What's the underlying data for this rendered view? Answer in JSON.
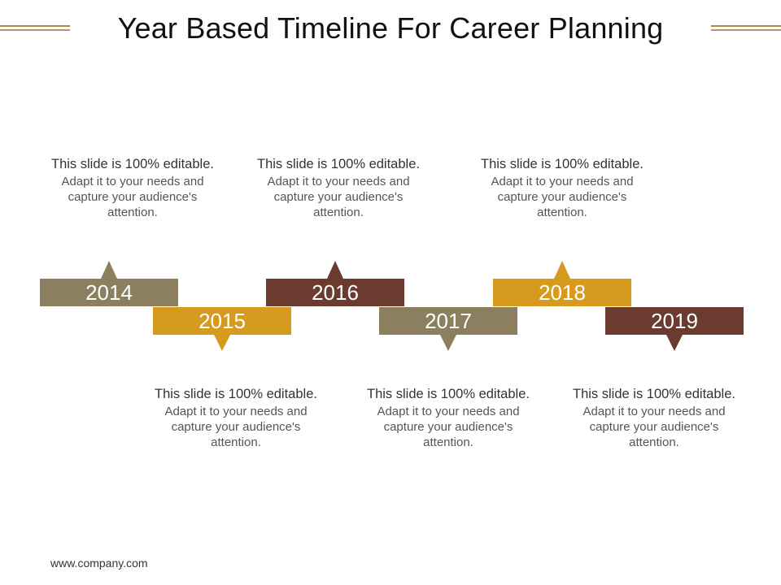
{
  "title": "Year Based Timeline For Career Planning",
  "footer": "www.company.com",
  "colors": {
    "taupe": "#8b7f5f",
    "gold": "#d69a1e",
    "brown": "#6b3b30"
  },
  "milestones": [
    {
      "year": "2014",
      "color": "#8b7f5f",
      "heading": "This slide is 100% editable.",
      "body": "Adapt it to your needs and capture your audience's attention."
    },
    {
      "year": "2015",
      "color": "#d69a1e",
      "heading": "This slide is 100% editable.",
      "body": "Adapt it to your needs and capture your audience's attention."
    },
    {
      "year": "2016",
      "color": "#6b3b30",
      "heading": "This slide is 100% editable.",
      "body": "Adapt it to your needs and capture your audience's attention."
    },
    {
      "year": "2017",
      "color": "#8b7f5f",
      "heading": "This slide is 100% editable.",
      "body": "Adapt it to your needs and capture your audience's attention."
    },
    {
      "year": "2018",
      "color": "#d69a1e",
      "heading": "This slide is 100% editable.",
      "body": "Adapt it to your needs and capture your audience's attention."
    },
    {
      "year": "2019",
      "color": "#6b3b30",
      "heading": "This slide is 100% editable.",
      "body": "Adapt it to your needs and capture your audience's attention."
    }
  ]
}
